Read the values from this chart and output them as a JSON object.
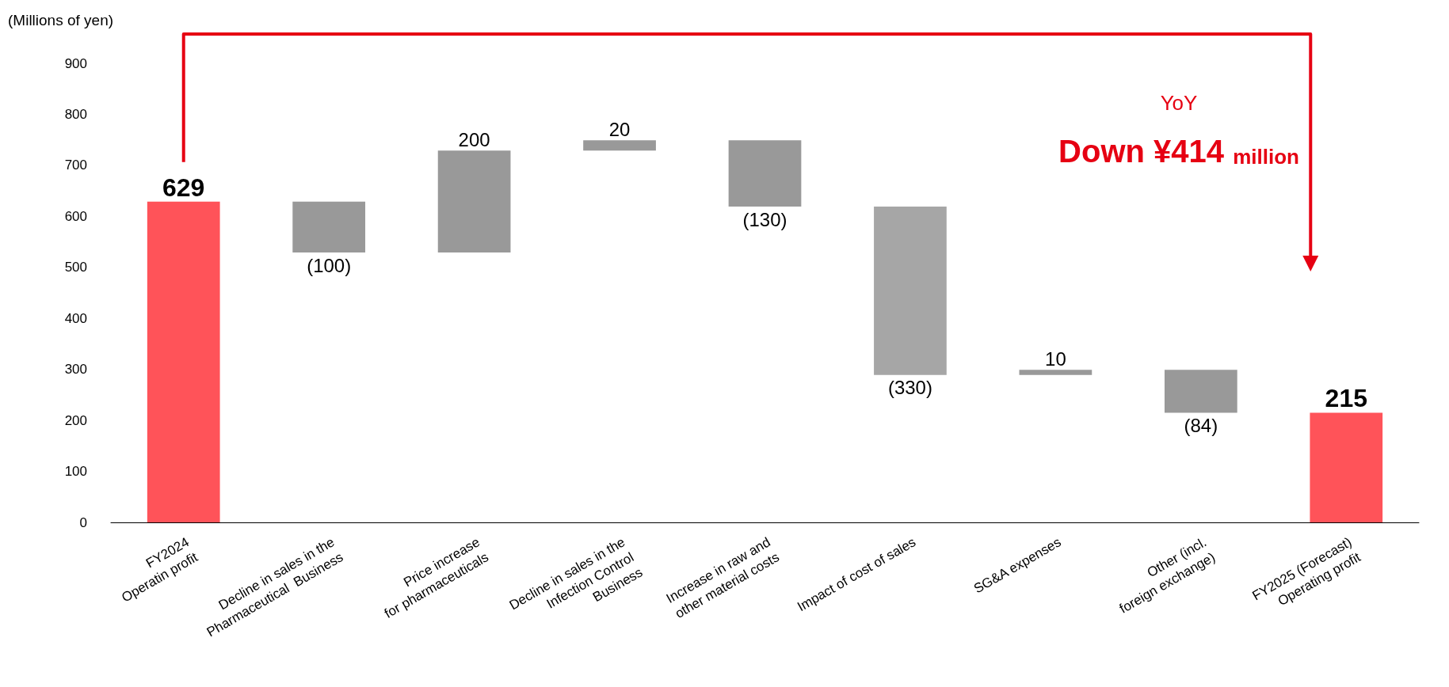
{
  "chart_data": {
    "type": "bar",
    "ylabel": "(Millions of yen)",
    "categories": [
      "FY2024\nOperatin profit",
      "Decline in sales in the\nPharmaceutical  Business",
      "Price increase\nfor pharmaceuticals",
      "Decline in sales in the\nInfection Control\nBusiness",
      "Increase in raw and\nother material costs",
      "Impact of cost of sales",
      "SG&A expenses",
      "Other (incl.\nforeign exchange)",
      "FY2025 (Forecast)\nOperating profit"
    ],
    "values": [
      629,
      -100,
      200,
      20,
      -130,
      -330,
      10,
      -84,
      215
    ],
    "base": [
      0,
      629,
      529,
      729,
      749,
      619,
      289,
      299,
      0
    ],
    "colors": [
      "#ff5359",
      "#999999",
      "#999999",
      "#999999",
      "#999999",
      "#a6a6a6",
      "#999999",
      "#999999",
      "#ff5359"
    ],
    "value_labels": [
      "629",
      "(100)",
      "200",
      "20",
      "(130)",
      "(330)",
      "10",
      "(84)",
      "215"
    ],
    "ylim": [
      0,
      900
    ],
    "yticks": [
      0,
      100,
      200,
      300,
      400,
      500,
      600,
      700,
      800,
      900
    ],
    "grid": false,
    "annotations": [
      "YoY",
      "Down ¥414 million"
    ]
  }
}
